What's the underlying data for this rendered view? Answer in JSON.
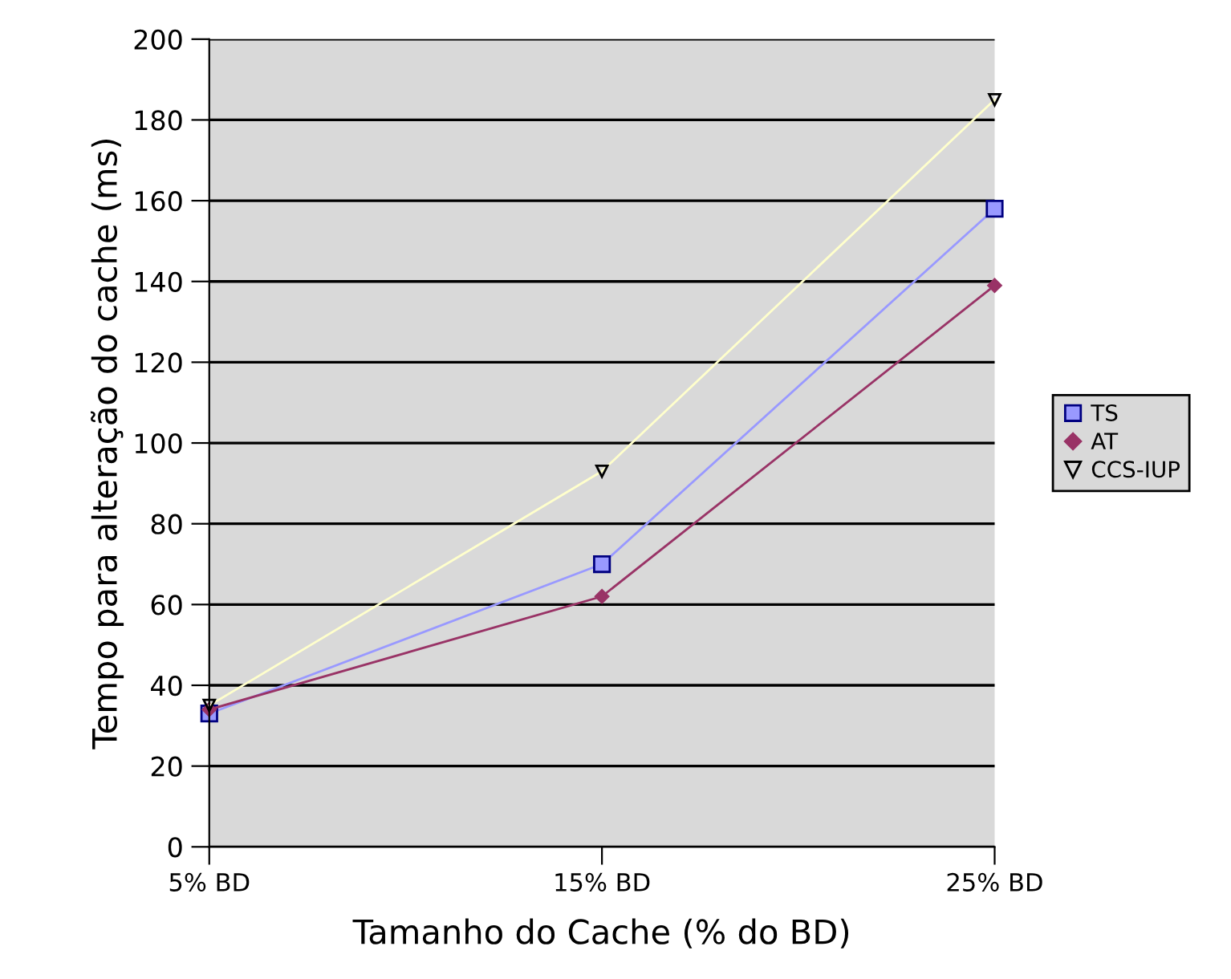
{
  "chart_data": {
    "type": "line",
    "xlabel": "Tamanho do Cache (% do BD)",
    "ylabel": "Tempo para alteração do cache (ms)",
    "categories": [
      "5% BD",
      "15% BD",
      "25% BD"
    ],
    "series": [
      {
        "name": "TS",
        "color": "#9999ff",
        "marker": "square",
        "values": [
          33,
          70,
          158
        ]
      },
      {
        "name": "AT",
        "color": "#993366",
        "marker": "diamond",
        "values": [
          34,
          62,
          139
        ]
      },
      {
        "name": "CCS-IUP",
        "color": "#ffffcc",
        "marker": "triangle",
        "values": [
          35,
          93,
          185
        ]
      }
    ],
    "ylim": [
      0,
      200
    ],
    "yticks": [
      0,
      20,
      40,
      60,
      80,
      100,
      120,
      140,
      160,
      180,
      200
    ],
    "grid": "y",
    "legend": "right"
  }
}
